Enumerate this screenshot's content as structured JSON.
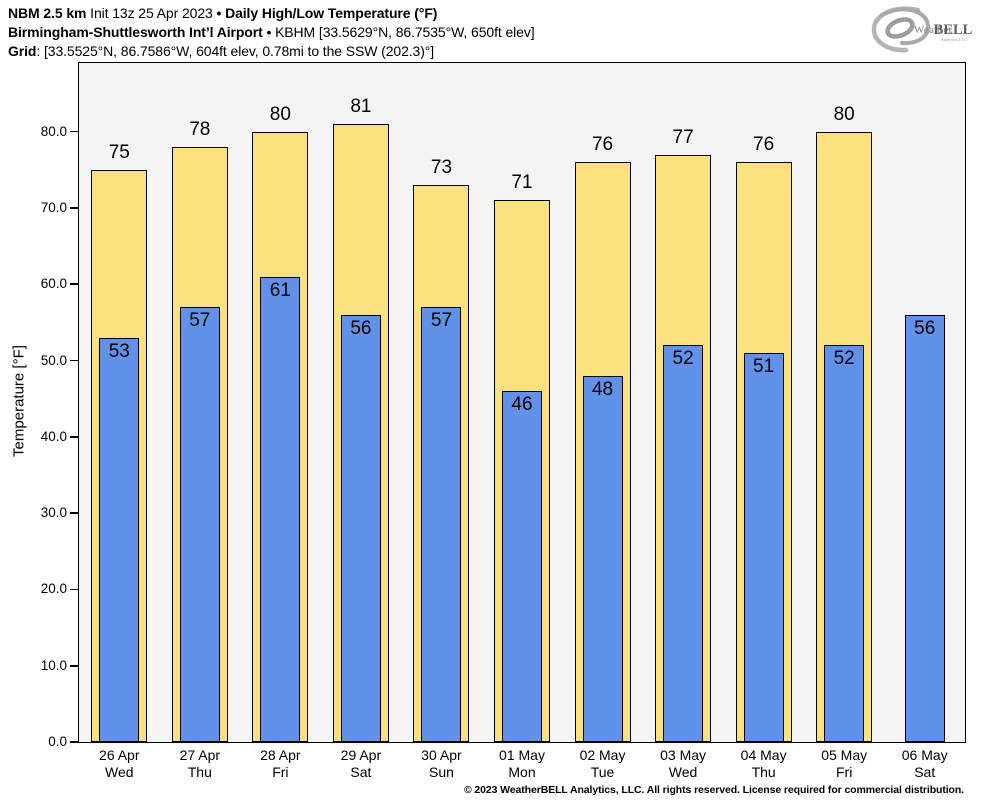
{
  "header": {
    "l1b1": "NBM 2.5 km",
    "l1r1": " Init 13z 25 Apr 2023 ",
    "l1b2": "• Daily High/Low Temperature (°F)",
    "l2b1": "Birmingham-Shuttlesworth Int’l Airport",
    "l2r1": " • KBHM [33.5629°N, 86.7535°W, 650ft elev]",
    "l3b1": "Grid",
    "l3r1": ": [33.5525°N, 86.7586°W, 604ft elev, 0.78mi to the SSW (202.3)°]"
  },
  "logo": {
    "weather": "Weather",
    "bell": "BELL",
    "sub": "Analytics LLC"
  },
  "footer": "© 2023 WeatherBELL Analytics, LLC. All rights reserved. License required for commercial distribution.",
  "chart_data": {
    "type": "bar",
    "title": "Daily High/Low Temperature (°F)",
    "model_init": "NBM 2.5 km Init 13z 25 Apr 2023",
    "station": "Birmingham-Shuttlesworth Int’l Airport • KBHM",
    "ylabel": "Temperature [°F]",
    "ylim": [
      0,
      89
    ],
    "yticks": [
      0,
      10,
      20,
      30,
      40,
      50,
      60,
      70,
      80
    ],
    "ytick_labels": [
      "0.0",
      "10.0",
      "20.0",
      "30.0",
      "40.0",
      "50.0",
      "60.0",
      "70.0",
      "80.0"
    ],
    "grid": false,
    "legend": "none",
    "plot_bg": "#f4f4f4",
    "bar_border": "#000000",
    "categories": [
      {
        "date": "26 Apr",
        "day": "Wed"
      },
      {
        "date": "27 Apr",
        "day": "Thu"
      },
      {
        "date": "28 Apr",
        "day": "Fri"
      },
      {
        "date": "29 Apr",
        "day": "Sat"
      },
      {
        "date": "30 Apr",
        "day": "Sun"
      },
      {
        "date": "01 May",
        "day": "Mon"
      },
      {
        "date": "02 May",
        "day": "Tue"
      },
      {
        "date": "03 May",
        "day": "Wed"
      },
      {
        "date": "04 May",
        "day": "Thu"
      },
      {
        "date": "05 May",
        "day": "Fri"
      },
      {
        "date": "06 May",
        "day": "Sat"
      }
    ],
    "series": [
      {
        "name": "High",
        "color": "#FBE17D",
        "values": [
          75,
          78,
          80,
          81,
          73,
          71,
          76,
          77,
          76,
          80,
          null
        ]
      },
      {
        "name": "Low",
        "color": "#6191E8",
        "values": [
          53,
          57,
          61,
          56,
          57,
          46,
          48,
          52,
          51,
          52,
          56
        ]
      }
    ]
  }
}
